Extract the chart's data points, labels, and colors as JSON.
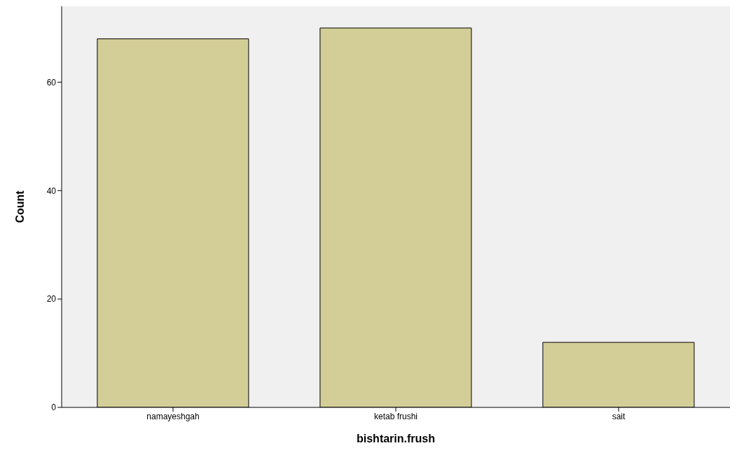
{
  "chart_data": {
    "type": "bar",
    "xlabel": "bishtarin.frush",
    "ylabel": "Count",
    "categories": [
      "namayeshgah",
      "ketab frushi",
      "sait"
    ],
    "values": [
      68,
      70,
      12
    ],
    "color": "#d3ce97",
    "ylim": [
      0,
      74
    ],
    "yticks": [
      0,
      20,
      40,
      60
    ],
    "grid": false
  }
}
